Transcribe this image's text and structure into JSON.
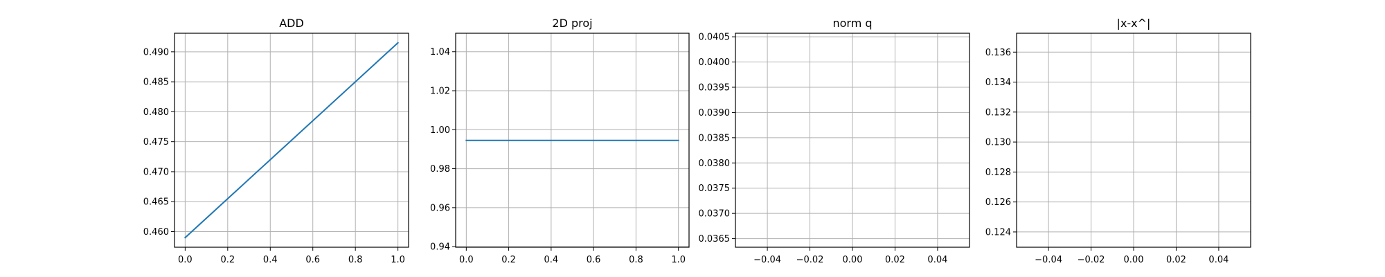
{
  "chart_data": [
    {
      "type": "line",
      "title": "ADD",
      "xlabel": "",
      "ylabel": "",
      "grid": true,
      "xlim": [
        -0.05,
        1.05
      ],
      "ylim": [
        0.4574,
        0.4931
      ],
      "xticks": [
        0.0,
        0.2,
        0.4,
        0.6,
        0.8,
        1.0
      ],
      "xtick_labels": [
        "0.0",
        "0.2",
        "0.4",
        "0.6",
        "0.8",
        "1.0"
      ],
      "yticks": [
        0.46,
        0.465,
        0.47,
        0.475,
        0.48,
        0.485,
        0.49
      ],
      "ytick_labels": [
        "0.460",
        "0.465",
        "0.470",
        "0.475",
        "0.480",
        "0.485",
        "0.490"
      ],
      "series": [
        {
          "x": [
            0.0,
            1.0
          ],
          "y": [
            0.459,
            0.4915
          ],
          "color": "#1f77b4"
        }
      ]
    },
    {
      "type": "line",
      "title": "2D proj",
      "xlabel": "",
      "ylabel": "",
      "grid": true,
      "xlim": [
        -0.05,
        1.05
      ],
      "ylim": [
        0.9397,
        1.0495
      ],
      "xticks": [
        0.0,
        0.2,
        0.4,
        0.6,
        0.8,
        1.0
      ],
      "xtick_labels": [
        "0.0",
        "0.2",
        "0.4",
        "0.6",
        "0.8",
        "1.0"
      ],
      "yticks": [
        0.94,
        0.96,
        0.98,
        1.0,
        1.02,
        1.04
      ],
      "ytick_labels": [
        "0.94",
        "0.96",
        "0.98",
        "1.00",
        "1.02",
        "1.04"
      ],
      "series": [
        {
          "x": [
            0.0,
            1.0
          ],
          "y": [
            0.9945,
            0.9945
          ],
          "color": "#1f77b4"
        }
      ]
    },
    {
      "type": "line",
      "title": "norm q",
      "xlabel": "",
      "ylabel": "",
      "grid": true,
      "xlim": [
        -0.055,
        0.055
      ],
      "ylim": [
        0.03633,
        0.04057
      ],
      "xticks": [
        -0.04,
        -0.02,
        0.0,
        0.02,
        0.04
      ],
      "xtick_labels": [
        "−0.04",
        "−0.02",
        "0.00",
        "0.02",
        "0.04"
      ],
      "yticks": [
        0.0365,
        0.037,
        0.0375,
        0.038,
        0.0385,
        0.039,
        0.0395,
        0.04,
        0.0405
      ],
      "ytick_labels": [
        "0.0365",
        "0.0370",
        "0.0375",
        "0.0380",
        "0.0385",
        "0.0390",
        "0.0395",
        "0.0400",
        "0.0405"
      ],
      "series": []
    },
    {
      "type": "line",
      "title": "|x-x^|",
      "xlabel": "",
      "ylabel": "",
      "grid": true,
      "xlim": [
        -0.055,
        0.055
      ],
      "ylim": [
        0.12298,
        0.13726
      ],
      "xticks": [
        -0.04,
        -0.02,
        0.0,
        0.02,
        0.04
      ],
      "xtick_labels": [
        "−0.04",
        "−0.02",
        "0.00",
        "0.02",
        "0.04"
      ],
      "yticks": [
        0.124,
        0.126,
        0.128,
        0.13,
        0.132,
        0.134,
        0.136
      ],
      "ytick_labels": [
        "0.124",
        "0.126",
        "0.128",
        "0.130",
        "0.132",
        "0.134",
        "0.136"
      ],
      "series": []
    }
  ],
  "colors": {
    "background": "#ffffff",
    "axes": "#000000",
    "grid": "#b0b0b0",
    "line": "#1f77b4"
  }
}
